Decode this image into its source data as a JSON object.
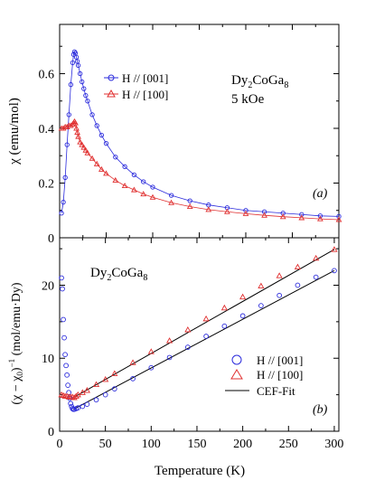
{
  "chart_data": [
    {
      "type": "scatter",
      "panel_label": "(a)",
      "annotation": {
        "compound_base": "Dy",
        "sub1": "2",
        "mid": "CoGa",
        "sub2": "8",
        "field": "5 kOe"
      },
      "ylabel": "χ (emu/mol)",
      "xlim": [
        0,
        300
      ],
      "ylim": [
        0,
        0.78
      ],
      "yticks": [
        0,
        0.2,
        0.4,
        0.6
      ],
      "ytick_labels": [
        "0",
        "0.2",
        "0.4",
        "0.6"
      ],
      "legend_position": "top-center",
      "series": [
        {
          "name": "H // [001]",
          "marker": "circle",
          "color": "#2b2bdc",
          "x": [
            2,
            4,
            6,
            8,
            10,
            12,
            14,
            15,
            16,
            17,
            18,
            19,
            20,
            22,
            24,
            26,
            28,
            30,
            35,
            40,
            45,
            50,
            60,
            70,
            80,
            90,
            100,
            120,
            140,
            160,
            180,
            200,
            220,
            240,
            260,
            280,
            300
          ],
          "y": [
            0.09,
            0.13,
            0.22,
            0.34,
            0.45,
            0.56,
            0.64,
            0.67,
            0.68,
            0.675,
            0.66,
            0.645,
            0.63,
            0.6,
            0.57,
            0.545,
            0.52,
            0.5,
            0.45,
            0.41,
            0.375,
            0.345,
            0.295,
            0.26,
            0.23,
            0.205,
            0.185,
            0.155,
            0.135,
            0.12,
            0.11,
            0.1,
            0.095,
            0.09,
            0.085,
            0.08,
            0.078
          ]
        },
        {
          "name": "H // [100]",
          "marker": "triangle",
          "color": "#e03030",
          "x": [
            2,
            4,
            6,
            8,
            10,
            12,
            14,
            15,
            16,
            17,
            18,
            19,
            20,
            22,
            24,
            26,
            28,
            30,
            35,
            40,
            45,
            50,
            60,
            70,
            80,
            90,
            100,
            120,
            140,
            160,
            180,
            200,
            220,
            240,
            260,
            280,
            300
          ],
          "y": [
            0.4,
            0.4,
            0.405,
            0.405,
            0.41,
            0.41,
            0.415,
            0.42,
            0.425,
            0.42,
            0.4,
            0.385,
            0.37,
            0.35,
            0.34,
            0.33,
            0.32,
            0.31,
            0.29,
            0.27,
            0.25,
            0.235,
            0.21,
            0.19,
            0.175,
            0.16,
            0.148,
            0.128,
            0.114,
            0.103,
            0.095,
            0.088,
            0.082,
            0.077,
            0.073,
            0.069,
            0.066
          ]
        }
      ]
    },
    {
      "type": "scatter",
      "panel_label": "(b)",
      "annotation": {
        "compound_base": "Dy",
        "sub1": "2",
        "mid": "CoGa",
        "sub2": "8"
      },
      "ylabel": "(χ − χ0)−1 (mol/emu·Dy)",
      "xlabel": "Temperature (K)",
      "xlim": [
        0,
        305
      ],
      "ylim": [
        0,
        26.5
      ],
      "xticks": [
        0,
        50,
        100,
        150,
        200,
        250,
        300
      ],
      "xtick_labels": [
        "0",
        "50",
        "100",
        "150",
        "200",
        "250",
        "300"
      ],
      "yticks": [
        0,
        10,
        20
      ],
      "ytick_labels": [
        "0",
        "10",
        "20"
      ],
      "legend_position": "lower-right",
      "series": [
        {
          "name": "H // [001]",
          "marker": "circle",
          "color": "#2b2bdc",
          "x": [
            2,
            3,
            4,
            5,
            6,
            7,
            8,
            9,
            10,
            11,
            12,
            13,
            14,
            15,
            16,
            18,
            20,
            25,
            30,
            40,
            50,
            60,
            80,
            100,
            120,
            140,
            160,
            180,
            200,
            220,
            240,
            260,
            280,
            300
          ],
          "y": [
            21.0,
            19.5,
            15.3,
            12.8,
            10.5,
            9.0,
            7.7,
            6.3,
            5.3,
            4.5,
            3.8,
            3.4,
            3.1,
            3.0,
            3.0,
            3.1,
            3.2,
            3.4,
            3.7,
            4.3,
            5.0,
            5.8,
            7.2,
            8.7,
            10.1,
            11.5,
            13.0,
            14.4,
            15.8,
            17.2,
            18.6,
            20.0,
            21.1,
            22.0
          ]
        },
        {
          "name": "H // [100]",
          "marker": "triangle",
          "color": "#e03030",
          "x": [
            2,
            4,
            6,
            8,
            10,
            12,
            14,
            16,
            18,
            20,
            25,
            30,
            40,
            50,
            60,
            80,
            100,
            120,
            140,
            160,
            180,
            200,
            220,
            240,
            260,
            280,
            300
          ],
          "y": [
            5.0,
            4.9,
            4.8,
            4.8,
            4.7,
            4.7,
            4.7,
            4.6,
            4.8,
            5.0,
            5.3,
            5.6,
            6.4,
            7.1,
            7.9,
            9.4,
            10.9,
            12.4,
            13.9,
            15.4,
            16.9,
            18.4,
            19.9,
            21.3,
            22.5,
            23.7,
            24.9
          ]
        }
      ],
      "fits": [
        {
          "name": "CEF-Fit",
          "color": "#000000",
          "x": [
            15,
            300
          ],
          "y": [
            3.0,
            22.0
          ]
        },
        {
          "name": "",
          "color": "#000000",
          "x": [
            15,
            300
          ],
          "y": [
            4.6,
            24.9
          ]
        }
      ]
    }
  ]
}
